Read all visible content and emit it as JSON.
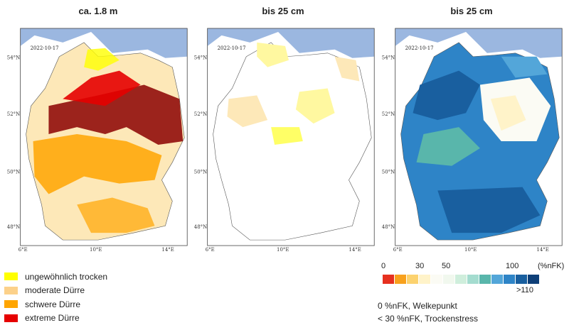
{
  "panels": [
    {
      "title": "ca. 1.8 m",
      "date": "2022-10-17"
    },
    {
      "title": "bis 25 cm",
      "date": "2022-10-17"
    },
    {
      "title": "bis 25 cm",
      "date": "2022-10-17"
    }
  ],
  "axes": {
    "lat": [
      "54°N",
      "52°N",
      "50°N",
      "48°N"
    ],
    "lon": [
      "6°E",
      "10°E",
      "14°E"
    ]
  },
  "drought_legend": [
    {
      "label": "ungewöhnlich trocken",
      "color": "#ffff00"
    },
    {
      "label": "moderate Dürre",
      "color": "#fcd18a"
    },
    {
      "label": "schwere Dürre",
      "color": "#ffa500"
    },
    {
      "label": "extreme Dürre",
      "color": "#e60000"
    }
  ],
  "nfk_scale": {
    "ticks": [
      "0",
      "30",
      "50",
      "100",
      "(%nFK)",
      ">110"
    ],
    "colors": [
      "#e6301f",
      "#f8a11c",
      "#fcd26e",
      "#fff3c9",
      "#fbfbf4",
      "#f1f8ee",
      "#cfeedc",
      "#a4dccf",
      "#59b6ab",
      "#53a6d9",
      "#2e84c7",
      "#195f9f",
      "#0e3f78"
    ]
  },
  "notes": [
    "0 %nFK, Welkepunkt",
    "< 30 %nFK, Trockenstress"
  ]
}
